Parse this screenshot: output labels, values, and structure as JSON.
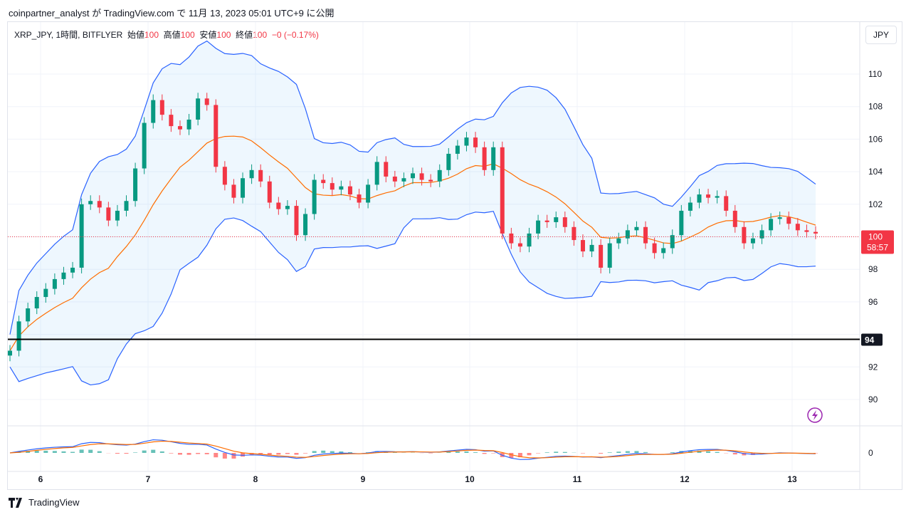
{
  "header": {
    "published": "coinpartner_analyst が TradingView.com で 11月 13, 2023 05:01 UTC+9 に公開"
  },
  "legend": {
    "symbol": "XRP_JPY, 1時間, BITFLYER",
    "open_label": "始値",
    "open": "100",
    "high_label": "高値",
    "high": "100",
    "low_label": "安値",
    "low": "100",
    "close_label": "終値",
    "close": "100",
    "change": "−0 (−0.17%)"
  },
  "currency_button": "JPY",
  "footer": {
    "brand": "TradingView"
  },
  "colors": {
    "up": "#089981",
    "down": "#f23645",
    "band": "#2962ff",
    "basis": "#ff6d00",
    "hline": "#000000"
  },
  "chart_data": {
    "type": "candlestick",
    "ylim": [
      89,
      111
    ],
    "y_ticks": [
      "90",
      "92",
      "94",
      "96",
      "98",
      "100",
      "102",
      "104",
      "106",
      "108",
      "110"
    ],
    "x_ticks": [
      "6",
      "7",
      "8",
      "9",
      "10",
      "11",
      "12",
      "13"
    ],
    "last_price": "100",
    "countdown": "58:57",
    "horizontal_line": {
      "value": 93.7,
      "label": "94"
    },
    "indicators": [
      "Bollinger Bands",
      "MACD"
    ],
    "macd_zero_label": "0",
    "closes": [
      93,
      94.8,
      95.6,
      96.3,
      96.8,
      97.4,
      97.8,
      98.1,
      102,
      102.2,
      101.8,
      101,
      101.6,
      102.2,
      104.2,
      107,
      108.4,
      107.5,
      106.8,
      106.6,
      107.2,
      108.5,
      108.1,
      104.3,
      103.2,
      102.4,
      103.6,
      104.1,
      103.4,
      102.1,
      101.7,
      101.9,
      100.1,
      101.4,
      103.5,
      103.3,
      102.9,
      103.1,
      102.6,
      102.1,
      103.2,
      104.6,
      103.7,
      103.4,
      103.6,
      103.9,
      103.5,
      103.4,
      104.1,
      105.1,
      105.6,
      106.1,
      105.5,
      104.1,
      105.5,
      100.2,
      99.6,
      99.4,
      100.2,
      101,
      100.9,
      101.2,
      100.6,
      99.8,
      99.1,
      99.5,
      98.1,
      99.6,
      99.9,
      100.4,
      100.6,
      99.6,
      99,
      99.3,
      100.1,
      101.6,
      102.1,
      102.6,
      102.4,
      102.5,
      101.6,
      100.6,
      99.6,
      99.9,
      100.4,
      101.1,
      101.2,
      100.8,
      100.4,
      100.3,
      100.2
    ]
  }
}
